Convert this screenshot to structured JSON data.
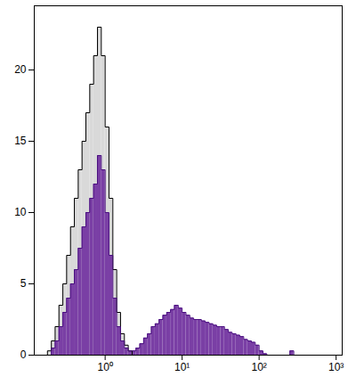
{
  "chart_data": {
    "type": "histogram",
    "log": "x",
    "xlim": [
      0.12,
      1200
    ],
    "ylim": [
      0,
      24.5
    ],
    "xticks": [
      {
        "value": 1,
        "label": "10⁰"
      },
      {
        "value": 10,
        "label": "10¹"
      },
      {
        "value": 100,
        "label": "10²"
      },
      {
        "value": 1000,
        "label": "10³"
      }
    ],
    "yticks": [
      0,
      5,
      10,
      15,
      20
    ],
    "bins": [
      0.126,
      0.141,
      0.158,
      0.178,
      0.2,
      0.224,
      0.251,
      0.282,
      0.316,
      0.355,
      0.398,
      0.447,
      0.501,
      0.562,
      0.631,
      0.708,
      0.794,
      0.891,
      1,
      1.122,
      1.259,
      1.413,
      1.585,
      1.778,
      1.995,
      2.239,
      2.512,
      2.818,
      3.162,
      3.548,
      3.981,
      4.467,
      5.012,
      5.623,
      6.31,
      7.079,
      7.943,
      8.913,
      10,
      11.22,
      12.59,
      14.13,
      15.85,
      17.78,
      19.95,
      22.39,
      25.12,
      28.18,
      31.62,
      35.48,
      39.81,
      44.67,
      50.12,
      56.23,
      63.1,
      70.79,
      79.43,
      89.13,
      100,
      112.2,
      125.9,
      141.3,
      158.5,
      177.8,
      199.5,
      223.9,
      251.2,
      281.8,
      316.2,
      354.8,
      398.1,
      446.7,
      501.2
    ],
    "series": [
      {
        "color": "#d9d9d9",
        "values": [
          0,
          0,
          0,
          0.3,
          1,
          2,
          3.5,
          5,
          7,
          9,
          11,
          13,
          15,
          17,
          19,
          21,
          23,
          21,
          16,
          11,
          6,
          3,
          1.5,
          0.7,
          0.3,
          0,
          0,
          0,
          0,
          0,
          0,
          0,
          0,
          0,
          0,
          0,
          0,
          0,
          0,
          0,
          0,
          0,
          0,
          0,
          0,
          0,
          0,
          0,
          0,
          0,
          0,
          0,
          0,
          0,
          0,
          0,
          0,
          0,
          0,
          0,
          0,
          0,
          0,
          0,
          0,
          0,
          0,
          0,
          0,
          0,
          0,
          0
        ]
      },
      {
        "color": "#7a3fa5",
        "values": [
          0,
          0,
          0,
          0,
          0.5,
          1,
          2,
          3,
          4,
          5,
          6,
          7.5,
          9,
          10,
          11,
          12,
          14,
          13,
          10,
          7,
          4,
          2,
          1,
          0.5,
          0.3,
          0.3,
          0.5,
          0.8,
          1.2,
          1.5,
          2,
          2.2,
          2.5,
          2.8,
          3,
          3.2,
          3.5,
          3.3,
          3,
          2.8,
          2.6,
          2.5,
          2.5,
          2.4,
          2.3,
          2.2,
          2.1,
          2,
          2,
          1.8,
          1.6,
          1.5,
          1.4,
          1.3,
          1.1,
          1,
          0.9,
          0.7,
          0.3,
          0.1,
          0,
          0,
          0,
          0,
          0,
          0,
          0.3,
          0,
          0,
          0,
          0,
          0
        ]
      }
    ]
  }
}
